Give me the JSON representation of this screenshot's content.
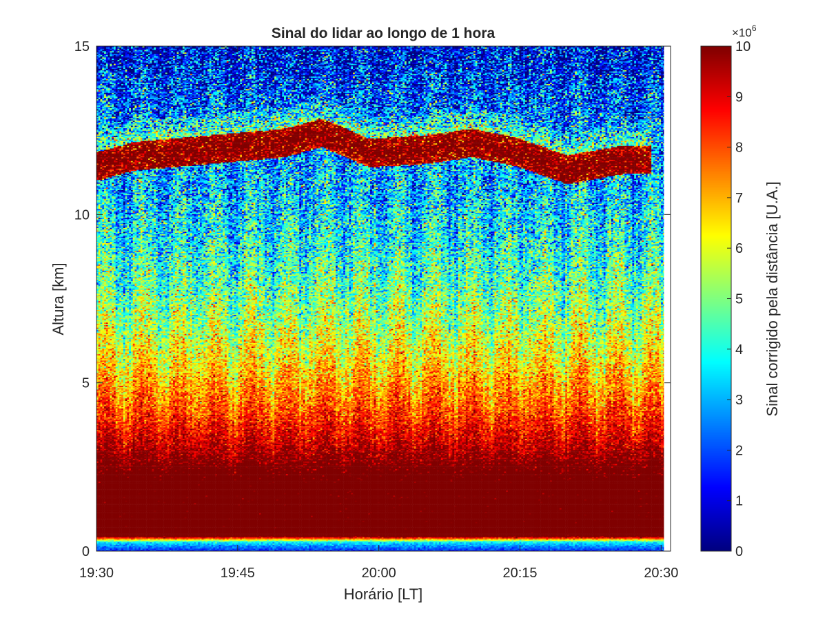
{
  "chart_data": {
    "type": "heatmap",
    "title": "Sinal do lidar ao longo de 1 hora",
    "xlabel": "Horário [LT]",
    "ylabel": "Altura [km]",
    "x_ticks": [
      "19:30",
      "19:45",
      "20:00",
      "20:15",
      "20:30"
    ],
    "x_tick_minutes": [
      0,
      15,
      30,
      45,
      60
    ],
    "x_range_minutes": [
      0,
      61
    ],
    "y_ticks": [
      "0",
      "5",
      "10",
      "15"
    ],
    "y_tick_values": [
      0,
      5,
      10,
      15
    ],
    "ylim": [
      0,
      15
    ],
    "colormap": "jet",
    "colorbar": {
      "label": "Sinal corrigido pela distância [U.A.]",
      "multiplier": "×10",
      "exponent": "6",
      "ticks": [
        "0",
        "1",
        "2",
        "3",
        "4",
        "5",
        "6",
        "7",
        "8",
        "9",
        "10"
      ],
      "tick_values": [
        0,
        1,
        2,
        3,
        4,
        5,
        6,
        7,
        8,
        9,
        10
      ],
      "range": [
        0,
        10
      ]
    },
    "features": {
      "boundary_layer_saturated_km": [
        0.5,
        1.8
      ],
      "cirrus_layer_km": [
        11.2,
        12.8
      ],
      "cirrus_base_km_over_time": [
        {
          "minute": 0,
          "km": 11.3
        },
        {
          "minute": 4,
          "km": 11.6
        },
        {
          "minute": 12,
          "km": 11.8
        },
        {
          "minute": 20,
          "km": 12.0
        },
        {
          "minute": 24,
          "km": 12.3
        },
        {
          "minute": 29,
          "km": 11.7
        },
        {
          "minute": 35,
          "km": 11.8
        },
        {
          "minute": 40,
          "km": 12.0
        },
        {
          "minute": 45,
          "km": 11.7
        },
        {
          "minute": 50,
          "km": 11.2
        },
        {
          "minute": 56,
          "km": 11.5
        },
        {
          "minute": 60,
          "km": 11.5
        }
      ]
    }
  }
}
